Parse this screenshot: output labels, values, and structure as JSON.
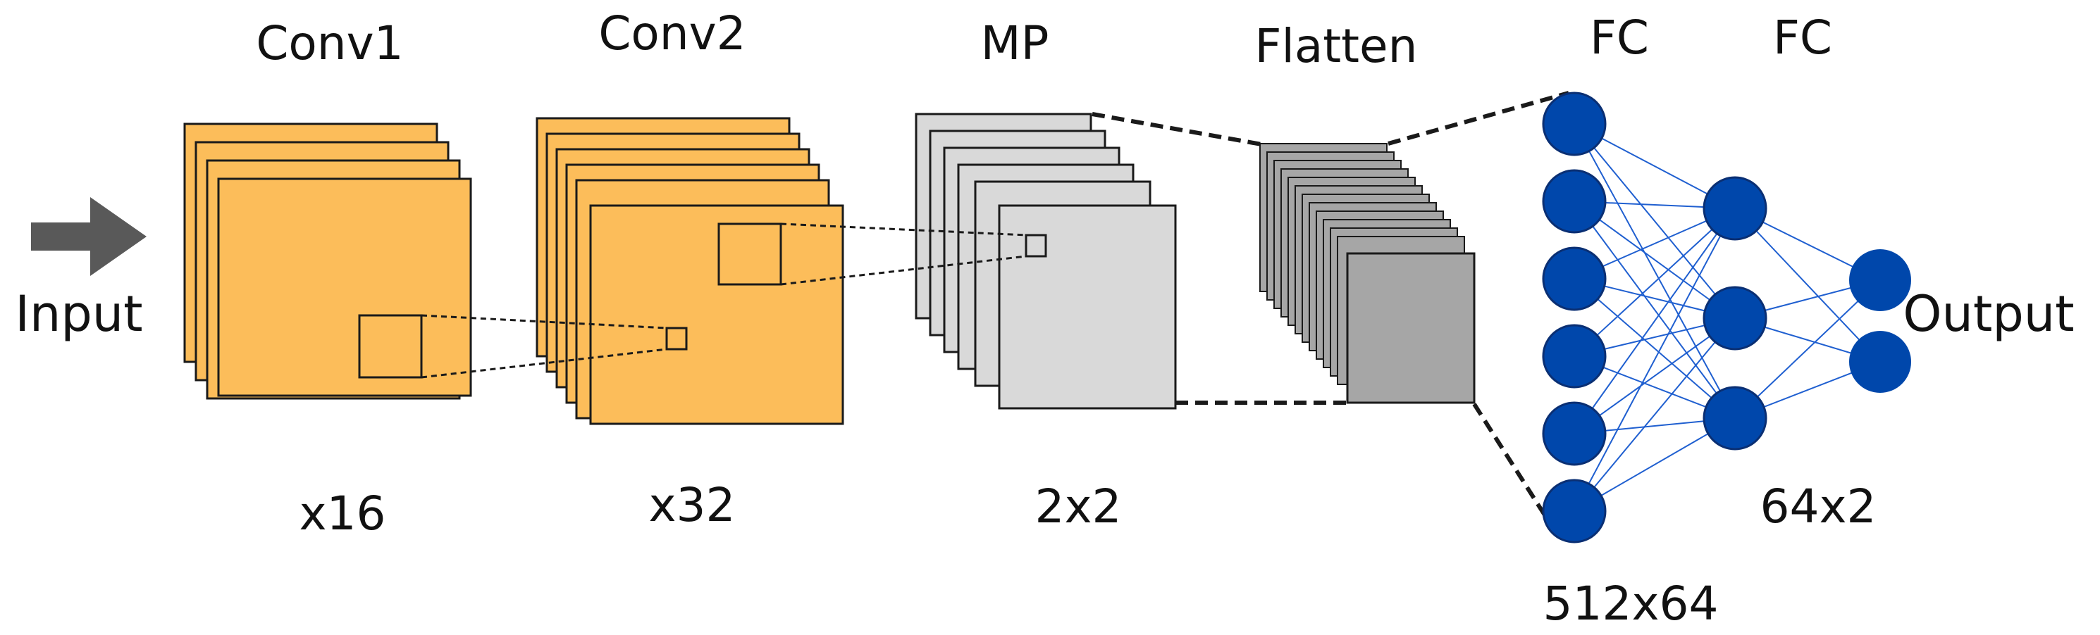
{
  "diagram": {
    "input_label": "Input",
    "output_label": "Output",
    "layers": [
      {
        "id": "conv1",
        "title": "Conv1",
        "caption": "x16",
        "fill": "#FCBD5A"
      },
      {
        "id": "conv2",
        "title": "Conv2",
        "caption": "x32",
        "fill": "#FCBD5A"
      },
      {
        "id": "mp",
        "title": "MP",
        "caption": "2x2",
        "fill": "#D9D9D9"
      },
      {
        "id": "flatten",
        "title": "Flatten",
        "caption": "",
        "fill": "#A6A6A6"
      },
      {
        "id": "fc1",
        "title": "FC",
        "caption": "512x64"
      },
      {
        "id": "fc2",
        "title": "FC",
        "caption": "64x2"
      }
    ],
    "network": {
      "layer_sizes": [
        6,
        3,
        2
      ],
      "node_color": "#0047AB",
      "edge_color": "#1F5FD0"
    },
    "colors": {
      "arrow": "#595959",
      "outline": "#1a1a1a"
    }
  }
}
